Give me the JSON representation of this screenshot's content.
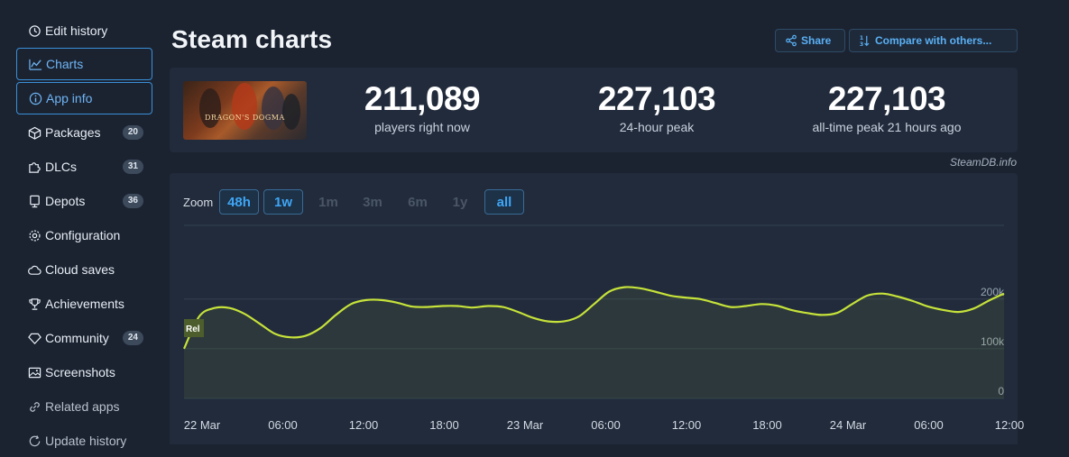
{
  "sidebar": {
    "items": [
      {
        "label": "Edit history",
        "icon": "history-icon",
        "badge": "",
        "style": "plain",
        "top": 16
      },
      {
        "label": "Charts",
        "icon": "line-chart-icon",
        "badge": "",
        "style": "boxed",
        "top": 53
      },
      {
        "label": "App info",
        "icon": "info-icon",
        "badge": "",
        "style": "boxed",
        "top": 91
      },
      {
        "label": "Packages",
        "icon": "package-icon",
        "badge": "20",
        "style": "plain",
        "top": 129
      },
      {
        "label": "DLCs",
        "icon": "puzzle-icon",
        "badge": "31",
        "style": "plain",
        "top": 167
      },
      {
        "label": "Depots",
        "icon": "server-icon",
        "badge": "36",
        "style": "plain",
        "top": 205
      },
      {
        "label": "Configuration",
        "icon": "gear-icon",
        "badge": "",
        "style": "plain",
        "top": 243
      },
      {
        "label": "Cloud saves",
        "icon": "cloud-icon",
        "badge": "",
        "style": "plain",
        "top": 281
      },
      {
        "label": "Achievements",
        "icon": "trophy-icon",
        "badge": "",
        "style": "plain",
        "top": 319
      },
      {
        "label": "Community",
        "icon": "diamond-icon",
        "badge": "24",
        "style": "plain",
        "top": 357
      },
      {
        "label": "Screenshots",
        "icon": "image-icon",
        "badge": "",
        "style": "plain",
        "top": 395
      },
      {
        "label": "Related apps",
        "icon": "link-icon",
        "badge": "",
        "style": "dim",
        "top": 433
      },
      {
        "label": "Update history",
        "icon": "refresh-icon",
        "badge": "",
        "style": "dim",
        "top": 471
      }
    ]
  },
  "header": {
    "title": "Steam charts",
    "share_label": "Share",
    "compare_label": "Compare with others..."
  },
  "stats": {
    "cover_text": "DRAGON'S DOGMA",
    "players_now": {
      "value": "211,089",
      "label": "players right now"
    },
    "peak_24h": {
      "value": "227,103",
      "label": "24-hour peak"
    },
    "peak_alltime": {
      "value": "227,103",
      "label": "all-time peak 21 hours ago"
    },
    "credit": "SteamDB.info"
  },
  "zoom": {
    "label": "Zoom",
    "options": [
      {
        "label": "48h",
        "active": true
      },
      {
        "label": "1w",
        "active": true
      },
      {
        "label": "1m",
        "active": false
      },
      {
        "label": "3m",
        "active": false
      },
      {
        "label": "6m",
        "active": false
      },
      {
        "label": "1y",
        "active": false
      },
      {
        "label": "all",
        "active": true
      }
    ]
  },
  "chart_data": {
    "type": "line",
    "title": "",
    "xlabel": "",
    "ylabel": "",
    "ylim": [
      0,
      300000
    ],
    "y_ticks": [
      {
        "value": 0,
        "label": "0"
      },
      {
        "value": 100000,
        "label": "100k"
      },
      {
        "value": 200000,
        "label": "200k"
      }
    ],
    "x_ticks": [
      "22 Mar",
      "06:00",
      "12:00",
      "18:00",
      "23 Mar",
      "06:00",
      "12:00",
      "18:00",
      "24 Mar",
      "06:00",
      "12:00"
    ],
    "x_hours_range": [
      0,
      54
    ],
    "annotation": "Rel",
    "line_color": "#c6e23a",
    "series": [
      {
        "x_hours": [
          0,
          1,
          2,
          3,
          4,
          5,
          6,
          7,
          8,
          9,
          10,
          11,
          12,
          13,
          14,
          15,
          16,
          17,
          18,
          19,
          20,
          21,
          22,
          23,
          24,
          25,
          26,
          27,
          28,
          29,
          30,
          31,
          32,
          33,
          34,
          35,
          36,
          37,
          38,
          39,
          40,
          41,
          42,
          43,
          44,
          45,
          46,
          47,
          48,
          49,
          50,
          51,
          52,
          53,
          54
        ],
        "values": [
          100000,
          165000,
          182000,
          182000,
          170000,
          150000,
          130000,
          123000,
          126000,
          142000,
          168000,
          190000,
          198000,
          198000,
          193000,
          185000,
          184000,
          186000,
          186000,
          183000,
          186000,
          184000,
          174000,
          162000,
          155000,
          155000,
          165000,
          190000,
          215000,
          224000,
          222000,
          215000,
          207000,
          203000,
          200000,
          192000,
          184000,
          186000,
          190000,
          187000,
          178000,
          172000,
          168000,
          172000,
          190000,
          207000,
          211000,
          205000,
          196000,
          185000,
          178000,
          174000,
          181000,
          197000,
          211000
        ]
      }
    ],
    "grid": true
  }
}
